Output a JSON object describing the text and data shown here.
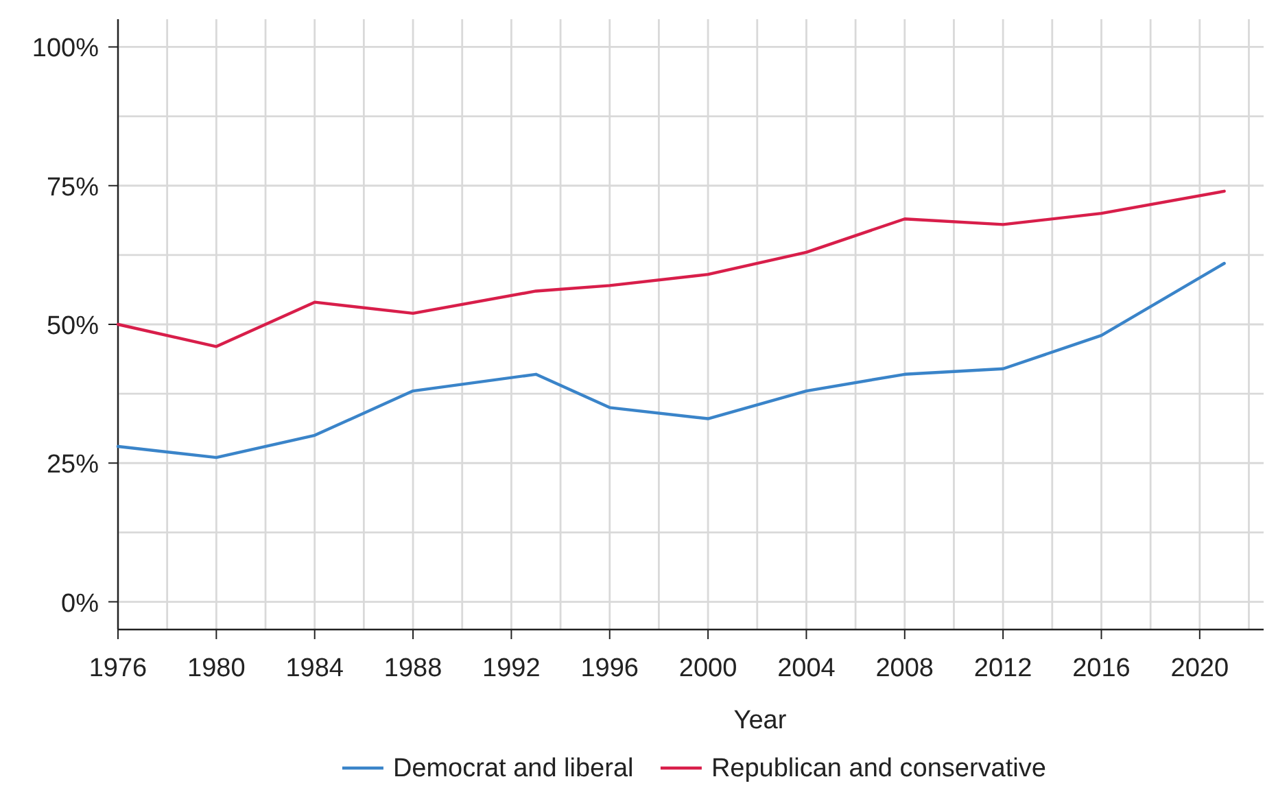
{
  "chart_data": {
    "type": "line",
    "xlabel": "Year",
    "x": [
      1976,
      1980,
      1984,
      1988,
      1993,
      1996,
      2000,
      2004,
      2008,
      2012,
      2016,
      2021
    ],
    "series": [
      {
        "name": "Democrat and liberal",
        "color": "#3a84c9",
        "values": [
          28,
          26,
          30,
          38,
          41,
          35,
          33,
          38,
          41,
          42,
          48,
          61
        ]
      },
      {
        "name": "Republican and conservative",
        "color": "#d81e4a",
        "values": [
          50,
          46,
          54,
          52,
          56,
          57,
          59,
          63,
          69,
          68,
          70,
          74
        ]
      }
    ],
    "xlim": [
      1976,
      2022.6
    ],
    "ylim": [
      -5,
      105
    ],
    "xticks": [
      1976,
      {
        "value": 1978,
        "label": null
      },
      1980,
      {
        "value": 1982,
        "label": null
      },
      1984,
      {
        "value": 1986,
        "label": null
      },
      1988,
      {
        "value": 1990,
        "label": null
      },
      1992,
      {
        "value": 1994,
        "label": null
      },
      1996,
      {
        "value": 1998,
        "label": null
      },
      2000,
      {
        "value": 2002,
        "label": null
      },
      2004,
      {
        "value": 2006,
        "label": null
      },
      2008,
      {
        "value": 2010,
        "label": null
      },
      2012,
      {
        "value": 2014,
        "label": null
      },
      2016,
      {
        "value": 2018,
        "label": null
      },
      2020,
      {
        "value": 2022,
        "label": null
      }
    ],
    "yticks": [
      {
        "value": 0,
        "label": "0%"
      },
      {
        "value": 12.5,
        "label": null
      },
      {
        "value": 25,
        "label": "25%"
      },
      {
        "value": 37.5,
        "label": null
      },
      {
        "value": 50,
        "label": "50%"
      },
      {
        "value": 62.5,
        "label": null
      },
      {
        "value": 75,
        "label": "75%"
      },
      {
        "value": 87.5,
        "label": null
      },
      {
        "value": 100,
        "label": "100%"
      }
    ],
    "grid": true,
    "legend": "bottom",
    "marker": "none",
    "line_style": "solid"
  }
}
